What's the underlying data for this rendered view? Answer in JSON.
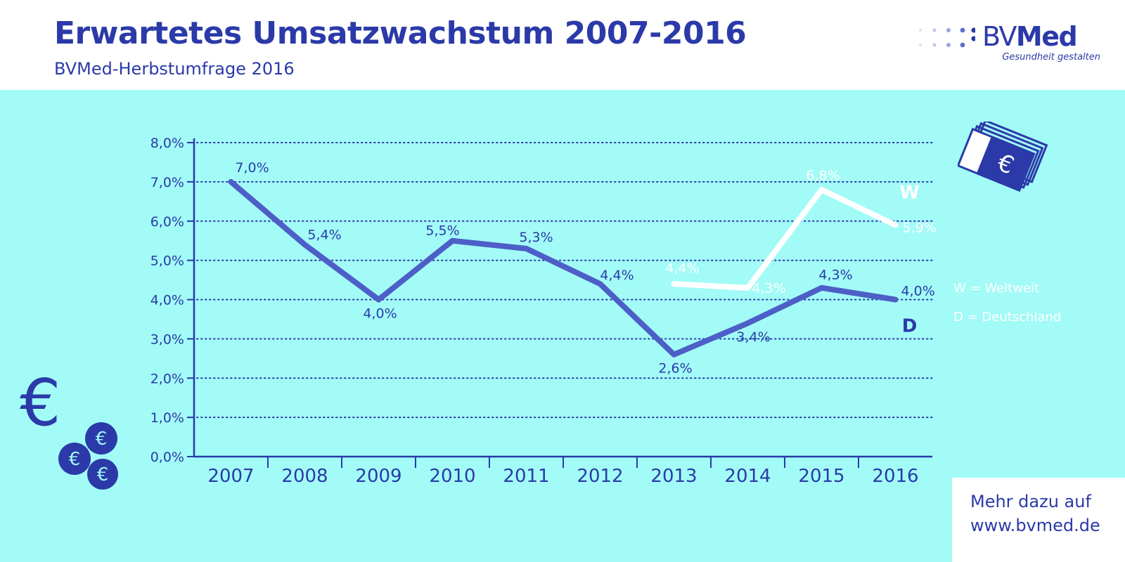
{
  "header": {
    "title": "Erwartetes Umsatzwachstum 2007-2016",
    "subtitle": "BVMed-Herbstumfrage 2016"
  },
  "logo": {
    "name_part1": "BV",
    "name_part2": "Med",
    "tagline": "Gesundheit gestalten"
  },
  "legend": {
    "w": "W = Weltweit",
    "d": "D = Deutschland"
  },
  "cta": {
    "line1": "Mehr dazu auf",
    "line2": "www.bvmed.de"
  },
  "icons": {
    "euro_big": "€",
    "coin_glyph": "€"
  },
  "colors": {
    "primary": "#2b3aa8",
    "line_d": "#4d5fc7",
    "line_w": "#ffffff",
    "background": "#a2fbf7"
  },
  "chart_data": {
    "type": "line",
    "title": "Erwartetes Umsatzwachstum 2007-2016",
    "subtitle": "BVMed-Herbstumfrage 2016",
    "categories": [
      "2007",
      "2008",
      "2009",
      "2010",
      "2011",
      "2012",
      "2013",
      "2014",
      "2015",
      "2016"
    ],
    "ylim": [
      0,
      8
    ],
    "yticks": [
      0,
      1,
      2,
      3,
      4,
      5,
      6,
      7,
      8
    ],
    "ytick_labels": [
      "0,0%",
      "1,0%",
      "2,0%",
      "3,0%",
      "4,0%",
      "5,0%",
      "6,0%",
      "7,0%",
      "8,0%"
    ],
    "grid": true,
    "series": [
      {
        "name": "D",
        "legend": "D = Deutschland",
        "values": [
          7.0,
          null,
          4.0,
          5.5,
          5.3,
          4.4,
          2.6,
          null,
          4.3,
          4.0
        ],
        "labels": [
          "7,0%",
          "5,4%",
          "4,0%",
          "5,5%",
          "5,3%",
          "4,4%",
          "2,6%",
          "3,4%",
          "4,3%",
          "4,0%"
        ],
        "label_positions": [
          {
            "year": "2007",
            "value": 7.0
          },
          {
            "year": "2008",
            "value": 5.4
          },
          {
            "year": "2009",
            "value": 4.0
          },
          {
            "year": "2010",
            "value": 5.5
          },
          {
            "year": "2011",
            "value": 5.3
          },
          {
            "year": "2012",
            "value": 4.4
          },
          {
            "year": "2013",
            "value": 2.6
          },
          {
            "year": "2014",
            "value": 3.4
          },
          {
            "year": "2015",
            "value": 4.3
          },
          {
            "year": "2016",
            "value": 4.0
          }
        ],
        "color": "#4d5fc7"
      },
      {
        "name": "W",
        "legend": "W = Weltweit",
        "values": [
          null,
          null,
          null,
          null,
          null,
          null,
          4.4,
          4.3,
          6.8,
          5.9
        ],
        "labels": [
          "4,4%",
          "4,3%",
          "6,8%",
          "5,9%"
        ],
        "label_years": [
          "2013",
          "2014",
          "2015",
          "2016"
        ],
        "color": "#ffffff"
      }
    ]
  }
}
